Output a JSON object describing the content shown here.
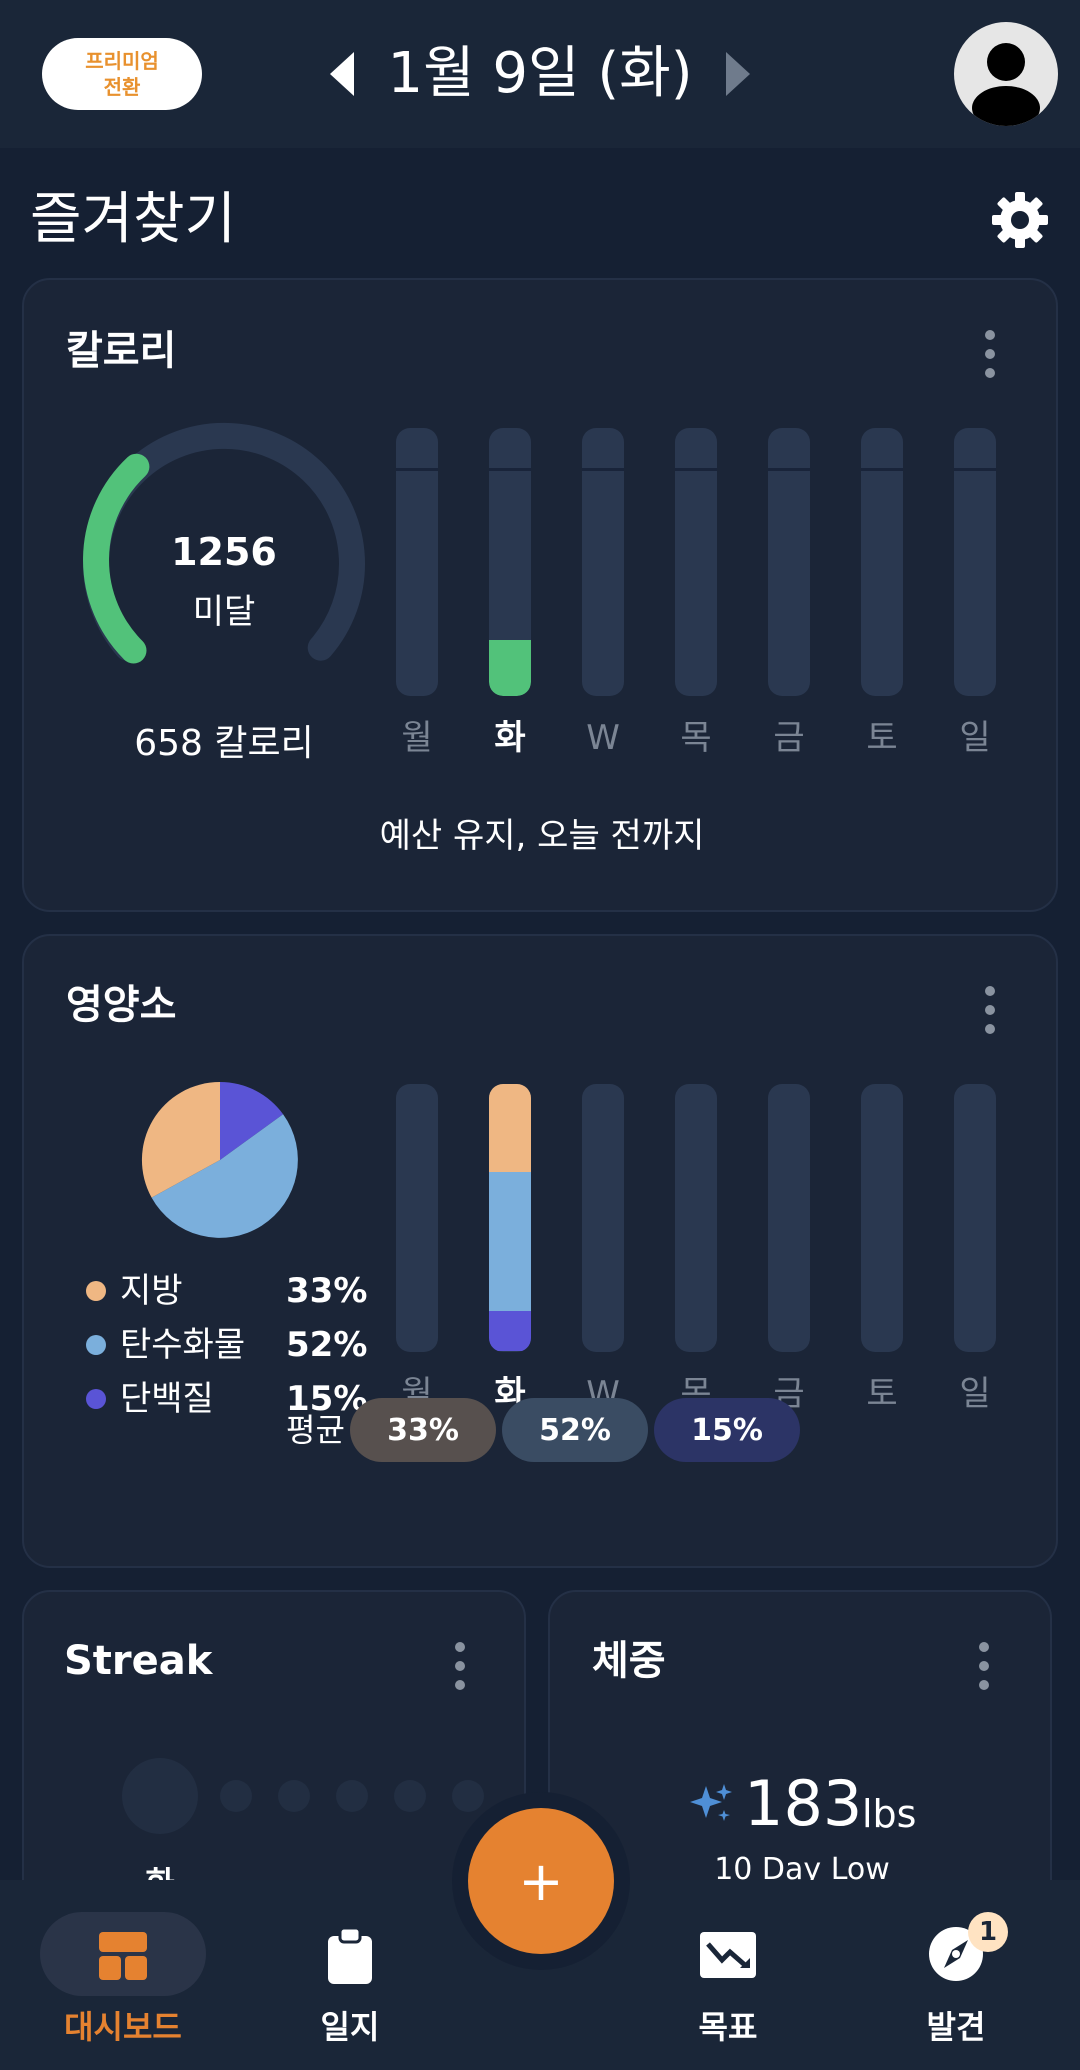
{
  "header": {
    "premium_line1": "프리미엄",
    "premium_line2": "전환",
    "date": "1월 9일 (화)"
  },
  "section_title": "즐겨찾기",
  "calories_card": {
    "title": "칼로리",
    "remaining_value": "1256",
    "remaining_label": "미달",
    "consumed": "658 칼로리",
    "footer": "예산 유지, 오늘 전까지",
    "days": [
      "월",
      "화",
      "W",
      "목",
      "금",
      "토",
      "일"
    ],
    "selected_day_index": 1,
    "today_fill_fraction": 0.21,
    "gauge_fill_fraction": 0.34
  },
  "nutrients_card": {
    "title": "영양소",
    "legend": [
      {
        "label": "지방",
        "pct": "33%",
        "color": "#efb783"
      },
      {
        "label": "탄수화물",
        "pct": "52%",
        "color": "#7bafdc"
      },
      {
        "label": "단백질",
        "pct": "15%",
        "color": "#5a54d6"
      }
    ],
    "days": [
      "월",
      "화",
      "W",
      "목",
      "금",
      "토",
      "일"
    ],
    "selected_day_index": 1,
    "average_label": "평균",
    "average_pills": [
      "33%",
      "52%",
      "15%"
    ]
  },
  "streak_card": {
    "title": "Streak",
    "day_label": "화"
  },
  "weight_card": {
    "title": "체중",
    "value": "183",
    "unit": "lbs",
    "subtitle": "10 Day Low"
  },
  "nav": {
    "items": [
      "대시보드",
      "일지",
      "목표",
      "발견"
    ],
    "active_index": 0,
    "discover_badge": "1",
    "fab_symbol": "+"
  },
  "colors": {
    "accent": "#e58230",
    "calorie_green": "#52c27a",
    "background": "#152033",
    "card": "#1b2537"
  }
}
